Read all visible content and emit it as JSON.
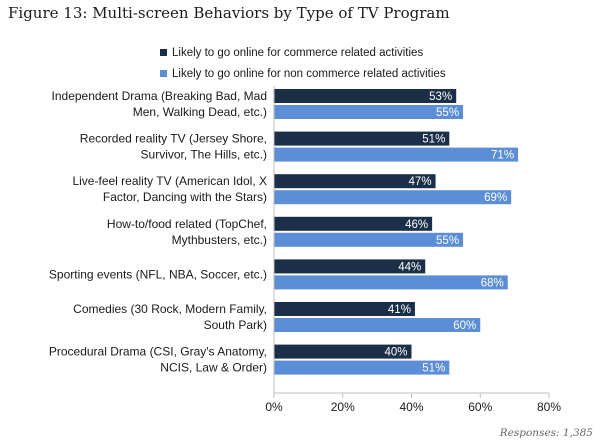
{
  "title": "Figure 13: Multi-screen Behaviors by Type of TV Program",
  "footnote": "Responses: 1,385",
  "colors": {
    "series1": "#1b2f48",
    "series2": "#5b8ed6",
    "axis": "#bfbfbf",
    "text": "#1a1a1a"
  },
  "chart_data": {
    "type": "bar",
    "orientation": "horizontal",
    "categories": [
      [
        "Independent Drama (Breaking Bad, Mad",
        "Men, Walking Dead, etc.)"
      ],
      [
        "Recorded reality TV (Jersey Shore,",
        "Survivor, The Hills, etc.)"
      ],
      [
        "Live-feel reality TV (American Idol, X",
        "Factor, Dancing with the Stars)"
      ],
      [
        "How-to/food related (TopChef,",
        "Mythbusters, etc.)"
      ],
      [
        "Sporting events (NFL, NBA, Soccer, etc.)"
      ],
      [
        "Comedies (30 Rock, Modern Family,",
        "South Park)"
      ],
      [
        "Procedural Drama (CSI, Gray's Anatomy,",
        "NCIS, Law & Order)"
      ]
    ],
    "series": [
      {
        "name": "Likely to go online for commerce related activities",
        "values": [
          53,
          51,
          47,
          46,
          44,
          41,
          40
        ],
        "labels": [
          "53%",
          "51%",
          "47%",
          "46%",
          "44%",
          "41%",
          "40%"
        ]
      },
      {
        "name": "Likely to go online for non commerce related activities",
        "values": [
          55,
          71,
          69,
          55,
          68,
          60,
          51
        ],
        "labels": [
          "55%",
          "71%",
          "69%",
          "55%",
          "68%",
          "60%",
          "51%"
        ]
      }
    ],
    "xlim": [
      0,
      80
    ],
    "xticks": [
      0,
      20,
      40,
      60,
      80
    ],
    "xtick_labels": [
      "0%",
      "20%",
      "40%",
      "60%",
      "80%"
    ],
    "legend_position": "top",
    "grid": false
  }
}
